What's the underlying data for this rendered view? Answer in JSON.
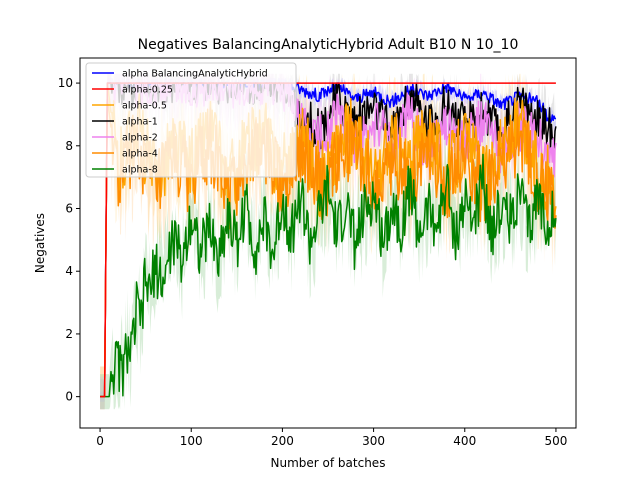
{
  "chart_data": {
    "type": "line",
    "title": "Negatives BalancingAnalyticHybrid Adult B10 N 10_10",
    "xlabel": "Number of batches",
    "ylabel": "Negatives",
    "xlim": [
      -22,
      522
    ],
    "ylim": [
      -1.0,
      10.8
    ],
    "xticks": [
      0,
      100,
      200,
      300,
      400,
      500
    ],
    "yticks": [
      0,
      2,
      4,
      6,
      8,
      10
    ],
    "grid": false,
    "legend_position": "top-left",
    "series": [
      {
        "name": "alpha BalancingAnalyticHybrid",
        "color": "#0000ff",
        "values": [
          [
            0,
            0
          ],
          [
            5,
            0
          ],
          [
            8,
            10
          ],
          [
            200,
            10
          ],
          [
            220,
            9.8
          ],
          [
            240,
            9.6
          ],
          [
            260,
            9.9
          ],
          [
            280,
            9.5
          ],
          [
            300,
            9.7
          ],
          [
            320,
            9.4
          ],
          [
            340,
            9.8
          ],
          [
            360,
            9.6
          ],
          [
            380,
            9.9
          ],
          [
            400,
            9.5
          ],
          [
            420,
            9.7
          ],
          [
            440,
            9.3
          ],
          [
            460,
            9.6
          ],
          [
            480,
            9.4
          ],
          [
            490,
            9.0
          ],
          [
            500,
            8.8
          ]
        ]
      },
      {
        "name": "alpha-0.25",
        "color": "#ff0000",
        "values": [
          [
            0,
            0
          ],
          [
            5,
            0
          ],
          [
            8,
            10
          ],
          [
            500,
            10
          ]
        ]
      },
      {
        "name": "alpha-0.5",
        "color": "#ffa500",
        "values": [
          [
            0,
            0
          ],
          [
            5,
            0
          ],
          [
            8,
            10
          ],
          [
            20,
            7.2
          ],
          [
            40,
            8.8
          ],
          [
            60,
            6.9
          ],
          [
            80,
            8.1
          ],
          [
            100,
            7.4
          ],
          [
            120,
            8.6
          ],
          [
            140,
            6.8
          ],
          [
            160,
            7.9
          ],
          [
            180,
            8.3
          ],
          [
            200,
            7.1
          ],
          [
            220,
            8.4
          ],
          [
            240,
            6.9
          ],
          [
            260,
            7.8
          ],
          [
            280,
            8.5
          ],
          [
            300,
            6.8
          ],
          [
            320,
            8.0
          ],
          [
            340,
            7.3
          ],
          [
            360,
            8.6
          ],
          [
            380,
            7.0
          ],
          [
            400,
            8.2
          ],
          [
            420,
            6.9
          ],
          [
            440,
            7.8
          ],
          [
            460,
            8.5
          ],
          [
            480,
            7.2
          ],
          [
            500,
            6.5
          ]
        ]
      },
      {
        "name": "alpha-1",
        "color": "#000000",
        "values": [
          [
            0,
            0
          ],
          [
            5,
            0
          ],
          [
            8,
            10
          ],
          [
            200,
            10
          ],
          [
            220,
            9.0
          ],
          [
            240,
            8.5
          ],
          [
            260,
            9.5
          ],
          [
            280,
            8.8
          ],
          [
            300,
            9.2
          ],
          [
            320,
            8.4
          ],
          [
            340,
            9.6
          ],
          [
            360,
            8.7
          ],
          [
            380,
            9.3
          ],
          [
            400,
            8.6
          ],
          [
            420,
            9.1
          ],
          [
            440,
            8.3
          ],
          [
            460,
            9.4
          ],
          [
            480,
            8.8
          ],
          [
            500,
            8.4
          ]
        ]
      },
      {
        "name": "alpha-2",
        "color": "#ee82ee",
        "values": [
          [
            0,
            0
          ],
          [
            5,
            0
          ],
          [
            8,
            10
          ],
          [
            200,
            10
          ],
          [
            220,
            8.6
          ],
          [
            240,
            8.2
          ],
          [
            260,
            9.0
          ],
          [
            280,
            7.9
          ],
          [
            300,
            8.7
          ],
          [
            320,
            8.1
          ],
          [
            340,
            9.1
          ],
          [
            360,
            7.8
          ],
          [
            380,
            8.8
          ],
          [
            400,
            8.0
          ],
          [
            420,
            8.9
          ],
          [
            440,
            7.7
          ],
          [
            460,
            8.6
          ],
          [
            480,
            8.2
          ],
          [
            500,
            7.3
          ]
        ]
      },
      {
        "name": "alpha-4",
        "color": "#ff8c00",
        "values": [
          [
            0,
            0
          ],
          [
            5,
            0
          ],
          [
            8,
            9.5
          ],
          [
            20,
            6.8
          ],
          [
            40,
            8.2
          ],
          [
            60,
            6.5
          ],
          [
            80,
            7.6
          ],
          [
            100,
            6.9
          ],
          [
            120,
            8.1
          ],
          [
            140,
            6.4
          ],
          [
            160,
            7.5
          ],
          [
            180,
            7.9
          ],
          [
            200,
            6.8
          ],
          [
            220,
            8.0
          ],
          [
            240,
            6.6
          ],
          [
            260,
            7.4
          ],
          [
            280,
            8.1
          ],
          [
            300,
            6.5
          ],
          [
            320,
            7.6
          ],
          [
            340,
            7.0
          ],
          [
            360,
            8.2
          ],
          [
            380,
            6.7
          ],
          [
            400,
            7.8
          ],
          [
            420,
            6.6
          ],
          [
            440,
            7.5
          ],
          [
            460,
            8.1
          ],
          [
            480,
            6.9
          ],
          [
            500,
            6.2
          ]
        ]
      },
      {
        "name": "alpha-8",
        "color": "#008000",
        "values": [
          [
            0,
            0
          ],
          [
            5,
            0
          ],
          [
            10,
            0
          ],
          [
            12,
            0.8
          ],
          [
            20,
            1.1
          ],
          [
            25,
            0.7
          ],
          [
            30,
            1.6
          ],
          [
            35,
            1.4
          ],
          [
            40,
            2.8
          ],
          [
            45,
            2.4
          ],
          [
            50,
            3.8
          ],
          [
            55,
            3.2
          ],
          [
            60,
            4.2
          ],
          [
            70,
            3.6
          ],
          [
            80,
            5.1
          ],
          [
            90,
            4.3
          ],
          [
            100,
            5.9
          ],
          [
            110,
            4.6
          ],
          [
            120,
            5.4
          ],
          [
            130,
            4.4
          ],
          [
            140,
            5.8
          ],
          [
            150,
            4.9
          ],
          [
            160,
            6.1
          ],
          [
            170,
            4.7
          ],
          [
            180,
            5.6
          ],
          [
            190,
            4.5
          ],
          [
            200,
            6.3
          ],
          [
            210,
            5.2
          ],
          [
            220,
            6.5
          ],
          [
            230,
            4.9
          ],
          [
            240,
            5.7
          ],
          [
            250,
            6.6
          ],
          [
            260,
            5.1
          ],
          [
            270,
            6.2
          ],
          [
            280,
            4.8
          ],
          [
            290,
            5.9
          ],
          [
            300,
            6.4
          ],
          [
            310,
            5.0
          ],
          [
            320,
            6.1
          ],
          [
            330,
            5.5
          ],
          [
            340,
            6.7
          ],
          [
            350,
            5.2
          ],
          [
            360,
            6.0
          ],
          [
            370,
            5.4
          ],
          [
            380,
            6.8
          ],
          [
            390,
            5.1
          ],
          [
            400,
            6.2
          ],
          [
            410,
            5.6
          ],
          [
            420,
            6.9
          ],
          [
            430,
            5.3
          ],
          [
            440,
            6.1
          ],
          [
            450,
            5.7
          ],
          [
            460,
            6.6
          ],
          [
            470,
            5.2
          ],
          [
            480,
            6.4
          ],
          [
            490,
            5.5
          ],
          [
            495,
            6.0
          ],
          [
            500,
            5.4
          ]
        ]
      }
    ]
  }
}
